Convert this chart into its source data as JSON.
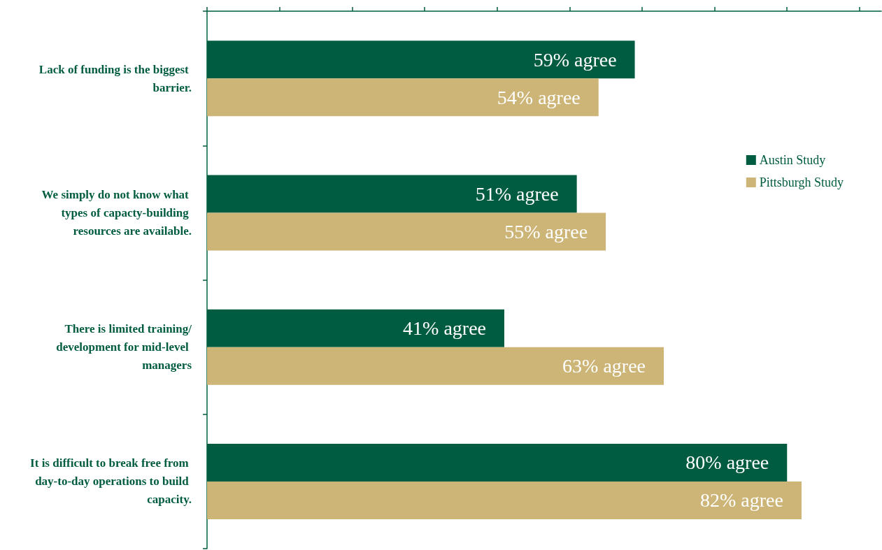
{
  "chart_data": {
    "type": "bar",
    "orientation": "horizontal",
    "categories": [
      "Lack of funding is the biggest barrier.",
      "We simply do not know what types of capacty-building resources are available.",
      "There is limited training/development for mid-level managers",
      "It is difficult to break free from day-to-day operations to build capacity."
    ],
    "series": [
      {
        "name": "Austin Study",
        "color": "#005c40",
        "values": [
          59,
          51,
          41,
          80
        ],
        "value_labels": [
          "59% agree",
          "51% agree",
          "41% agree",
          "80% agree"
        ]
      },
      {
        "name": "Pittsburgh Study",
        "color": "#cdb577",
        "values": [
          54,
          55,
          63,
          82
        ],
        "value_labels": [
          "54% agree",
          "55% agree",
          "63% agree",
          "82% agree"
        ]
      }
    ],
    "xlim": [
      0,
      93
    ],
    "xticks": [
      {
        "value": 0,
        "label": null
      },
      {
        "value": 10,
        "label": null
      },
      {
        "value": 20,
        "label": null
      },
      {
        "value": 30,
        "label": null
      },
      {
        "value": 40,
        "label": null
      },
      {
        "value": 50,
        "label": null
      },
      {
        "value": 60,
        "label": null
      },
      {
        "value": 70,
        "label": null
      },
      {
        "value": 80,
        "label": null
      },
      {
        "value": 90,
        "label": null
      }
    ],
    "tick_labels": "y",
    "grid": false,
    "legend": "right"
  }
}
